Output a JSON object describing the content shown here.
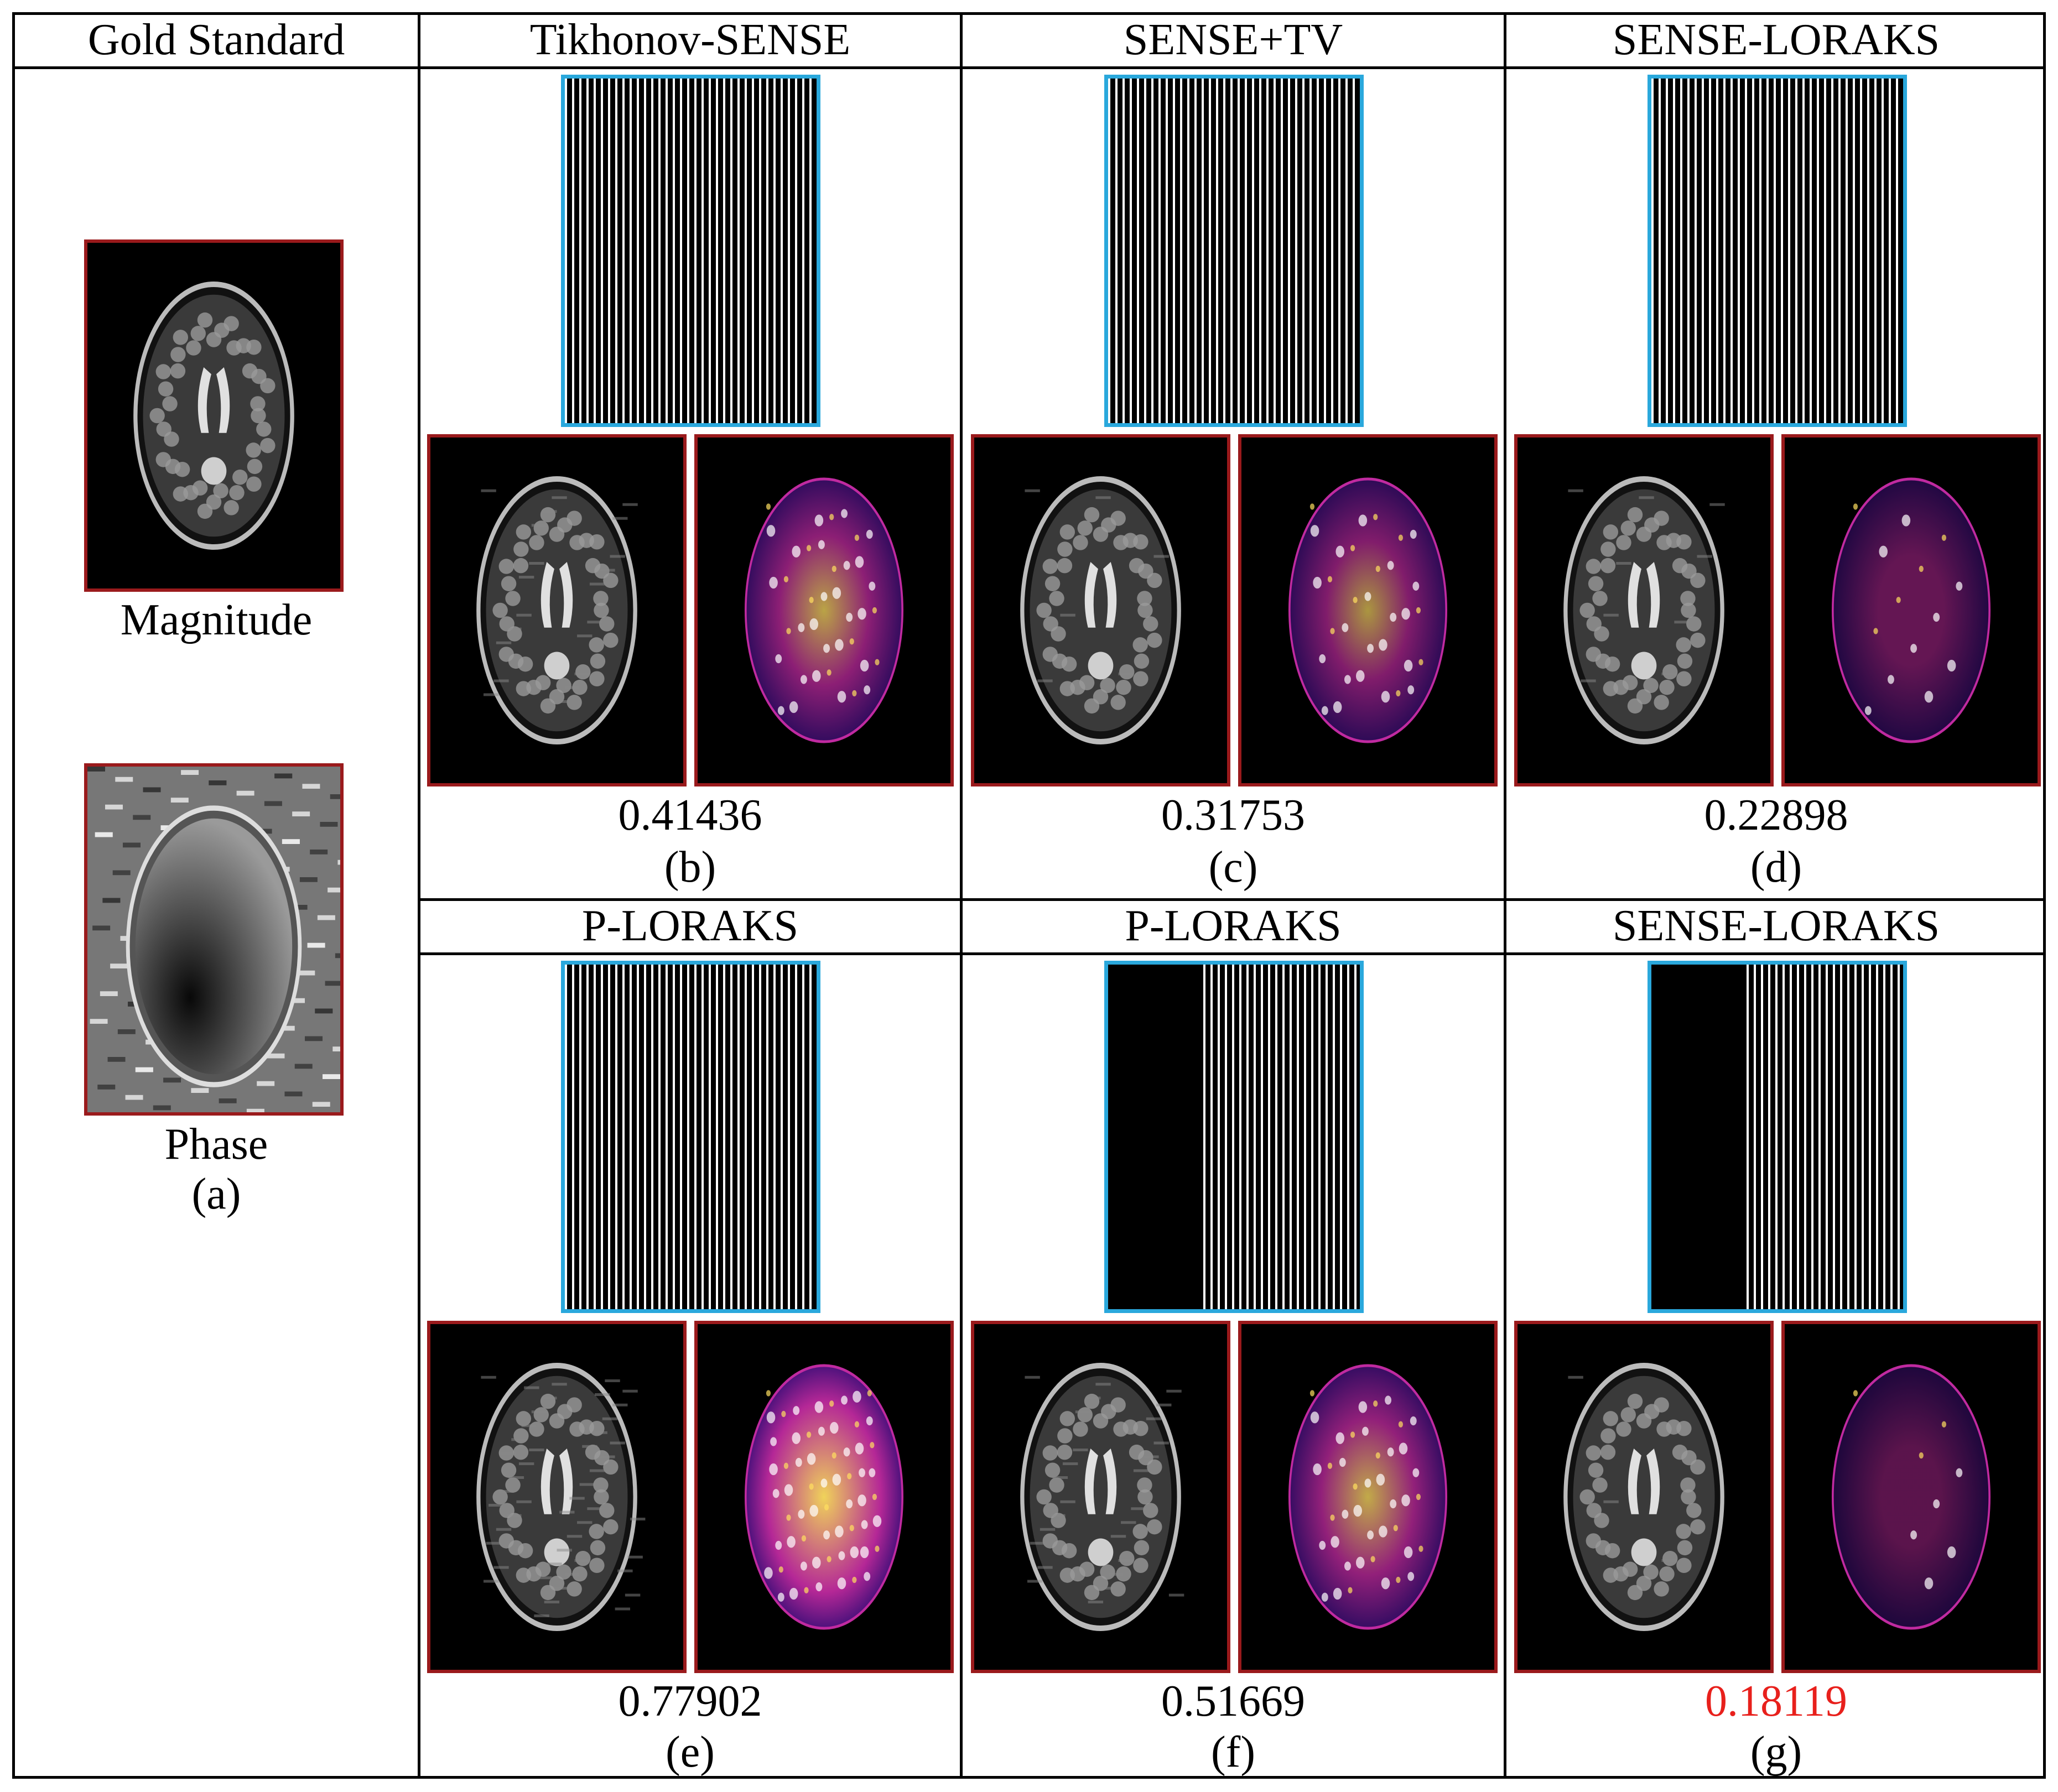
{
  "gold": {
    "header": "Gold Standard",
    "magnitude_label": "Magnitude",
    "phase_label": "Phase",
    "panel_letter": "(a)"
  },
  "panels": [
    {
      "header": "Tikhonov-SENSE",
      "metric": "0.41436",
      "letter": "(b)",
      "highlight": false,
      "error_level": 0.55
    },
    {
      "header": "SENSE+TV",
      "metric": "0.31753",
      "letter": "(c)",
      "highlight": false,
      "error_level": 0.45
    },
    {
      "header": "SENSE-LORAKS",
      "metric": "0.22898",
      "letter": "(d)",
      "highlight": false,
      "error_level": 0.2
    },
    {
      "header": "P-LORAKS",
      "metric": "0.77902",
      "letter": "(e)",
      "highlight": false,
      "error_level": 0.9
    },
    {
      "header": "P-LORAKS",
      "metric": "0.51669",
      "letter": "(f)",
      "highlight": false,
      "error_level": 0.6
    },
    {
      "header": "SENSE-LORAKS",
      "metric": "0.18119",
      "letter": "(g)",
      "highlight": true,
      "error_level": 0.12
    }
  ],
  "colors": {
    "mask_border": "#2aa8dc",
    "image_border": "#9a1a1c",
    "highlight_text": "#e8201c",
    "error_low": "#2a0a7a",
    "error_mid": "#c02aa0",
    "error_high": "#ffe060"
  }
}
